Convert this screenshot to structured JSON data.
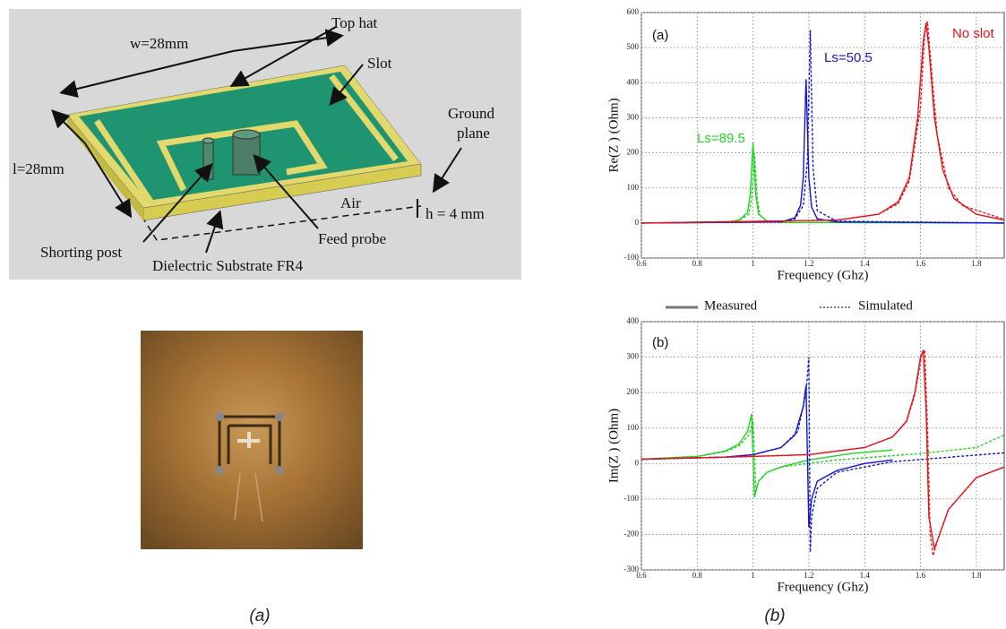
{
  "figure": {
    "diagram": {
      "top_hat": "Top hat",
      "width": "w=28mm",
      "slot": "Slot",
      "ground_plane": [
        "Ground",
        "plane"
      ],
      "length": "l=28mm",
      "air": "Air",
      "height": "h = 4 mm",
      "shorting_post": "Shorting post",
      "feed_probe": "Feed probe",
      "substrate": "Dielectric Substrate FR4"
    },
    "captions": [
      "(a)",
      "(b)"
    ]
  },
  "chart_data": [
    {
      "type": "line",
      "xlabel": "Frequency (Ghz)",
      "ylabel": "Re(Z ) (Ohm)",
      "xlim": [
        0.6,
        1.9
      ],
      "xticks": [
        0.6,
        0.8,
        1,
        1.2,
        1.4,
        1.6,
        1.8
      ],
      "ylim": [
        -100,
        600
      ],
      "yticks": [
        -100,
        0,
        100,
        200,
        300,
        400,
        500,
        600
      ],
      "grid": true,
      "annotations": [
        {
          "text": "(a)",
          "color": "#111111"
        },
        {
          "text": "Ls=50.5",
          "color": "#1515d0"
        },
        {
          "text": "No slot",
          "color": "#e8141b"
        },
        {
          "text": "Ls=89.5",
          "color": "#22d422"
        }
      ],
      "series": [
        {
          "color": "#22d422",
          "dash": false,
          "x": [
            0.6,
            0.9,
            0.95,
            0.98,
            0.99,
            1.0,
            1.01,
            1.02,
            1.05,
            1.1,
            1.5,
            1.9
          ],
          "values": [
            0,
            2,
            8,
            30,
            80,
            230,
            80,
            25,
            6,
            2,
            1,
            0
          ]
        },
        {
          "color": "#22d422",
          "dash": true,
          "x": [
            0.6,
            0.9,
            0.95,
            0.985,
            0.995,
            1.005,
            1.015,
            1.025,
            1.05,
            1.1,
            1.5,
            1.9
          ],
          "values": [
            0,
            2,
            7,
            25,
            70,
            200,
            70,
            22,
            6,
            2,
            1,
            0
          ]
        },
        {
          "color": "#1515d0",
          "dash": false,
          "x": [
            0.6,
            1.1,
            1.15,
            1.17,
            1.18,
            1.19,
            1.2,
            1.21,
            1.23,
            1.3,
            1.9
          ],
          "values": [
            0,
            3,
            15,
            50,
            130,
            410,
            130,
            45,
            12,
            3,
            0
          ]
        },
        {
          "color": "#1515d0",
          "dash": true,
          "x": [
            0.6,
            1.1,
            1.15,
            1.18,
            1.195,
            1.205,
            1.215,
            1.23,
            1.3,
            1.9
          ],
          "values": [
            0,
            3,
            12,
            50,
            180,
            550,
            160,
            35,
            5,
            0
          ]
        },
        {
          "color": "#e8141b",
          "dash": false,
          "x": [
            0.6,
            1.3,
            1.45,
            1.52,
            1.56,
            1.59,
            1.61,
            1.62,
            1.63,
            1.65,
            1.68,
            1.72,
            1.8,
            1.9
          ],
          "values": [
            0,
            8,
            25,
            60,
            130,
            300,
            520,
            570,
            500,
            300,
            150,
            70,
            25,
            8
          ]
        },
        {
          "color": "#e8141b",
          "dash": true,
          "x": [
            0.6,
            1.3,
            1.45,
            1.52,
            1.56,
            1.6,
            1.615,
            1.625,
            1.635,
            1.66,
            1.7,
            1.75,
            1.9
          ],
          "values": [
            0,
            8,
            25,
            55,
            120,
            330,
            540,
            575,
            480,
            250,
            100,
            50,
            10
          ]
        }
      ]
    },
    {
      "type": "line",
      "xlabel": "Frequency (Ghz)",
      "ylabel": "Im(Z ) (Ohm)",
      "xlim": [
        0.6,
        1.9
      ],
      "xticks": [
        0.6,
        0.8,
        1,
        1.2,
        1.4,
        1.6,
        1.8
      ],
      "ylim": [
        -300,
        400
      ],
      "yticks": [
        -300,
        -200,
        -100,
        0,
        100,
        200,
        300,
        400
      ],
      "grid": true,
      "annotations": [
        {
          "text": "(b)",
          "color": "#111111"
        }
      ],
      "legend": [
        {
          "text": "Measured",
          "dash": false,
          "color": "#777777"
        },
        {
          "text": "Simulated",
          "dash": true,
          "color": "#777777"
        }
      ],
      "series": [
        {
          "color": "#22d422",
          "dash": false,
          "x": [
            0.6,
            0.8,
            0.9,
            0.95,
            0.98,
            0.995,
            1.0,
            1.005,
            1.02,
            1.05,
            1.1,
            1.2,
            1.35,
            1.5
          ],
          "values": [
            12,
            20,
            35,
            55,
            90,
            140,
            20,
            -95,
            -50,
            -25,
            -10,
            10,
            28,
            38
          ]
        },
        {
          "color": "#22d422",
          "dash": true,
          "x": [
            0.6,
            0.8,
            0.9,
            0.95,
            0.985,
            1.0,
            1.005,
            1.01,
            1.02,
            1.05,
            1.1,
            1.3,
            1.6,
            1.8,
            1.9
          ],
          "values": [
            12,
            20,
            33,
            50,
            80,
            120,
            30,
            -80,
            -50,
            -25,
            -10,
            10,
            28,
            45,
            80
          ]
        },
        {
          "color": "#1515d0",
          "dash": false,
          "x": [
            0.6,
            0.9,
            1.0,
            1.1,
            1.15,
            1.18,
            1.19,
            1.2,
            1.21,
            1.23,
            1.3,
            1.4,
            1.5
          ],
          "values": [
            12,
            18,
            25,
            45,
            80,
            160,
            220,
            -180,
            -100,
            -50,
            -20,
            0,
            10
          ]
        },
        {
          "color": "#1515d0",
          "dash": true,
          "x": [
            0.6,
            0.9,
            1.0,
            1.1,
            1.16,
            1.19,
            1.2,
            1.205,
            1.21,
            1.23,
            1.3,
            1.5,
            1.9
          ],
          "values": [
            12,
            18,
            25,
            45,
            90,
            200,
            300,
            -250,
            -150,
            -70,
            -25,
            5,
            30
          ]
        },
        {
          "color": "#e8141b",
          "dash": false,
          "x": [
            0.6,
            1.0,
            1.2,
            1.4,
            1.5,
            1.55,
            1.58,
            1.6,
            1.61,
            1.62,
            1.63,
            1.65,
            1.7,
            1.8,
            1.9
          ],
          "values": [
            12,
            20,
            25,
            45,
            75,
            120,
            200,
            300,
            320,
            150,
            -150,
            -240,
            -130,
            -40,
            -10
          ]
        },
        {
          "color": "#e8141b",
          "dash": true,
          "x": [
            0.6,
            1.0,
            1.2,
            1.4,
            1.5,
            1.55,
            1.58,
            1.605,
            1.615,
            1.625,
            1.635,
            1.645,
            1.66,
            1.7,
            1.8,
            1.9
          ],
          "values": [
            12,
            20,
            25,
            45,
            75,
            118,
            195,
            310,
            320,
            100,
            -200,
            -260,
            -220,
            -130,
            -40,
            -10
          ]
        }
      ]
    }
  ]
}
